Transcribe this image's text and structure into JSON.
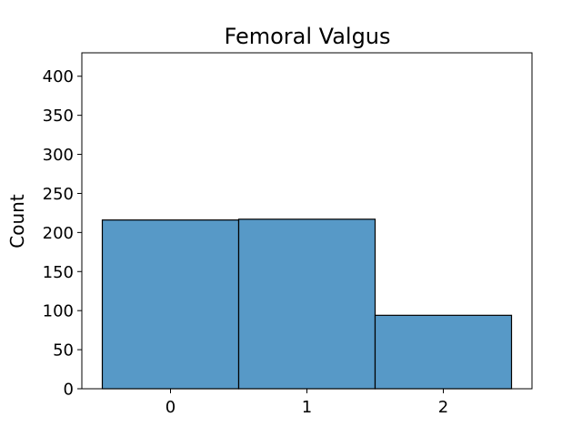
{
  "chart_data": {
    "type": "bar",
    "title": "Femoral Valgus",
    "xlabel": "",
    "ylabel": "Count",
    "categories": [
      "0",
      "1",
      "2"
    ],
    "values": [
      216,
      217,
      94
    ],
    "xlim": [
      -0.65,
      2.65
    ],
    "ylim": [
      0,
      430
    ],
    "yticks": [
      0,
      50,
      100,
      150,
      200,
      250,
      300,
      350,
      400
    ],
    "grid": false,
    "legend": "none",
    "bar_color": "#5799c7",
    "edge_color": "#000000"
  }
}
